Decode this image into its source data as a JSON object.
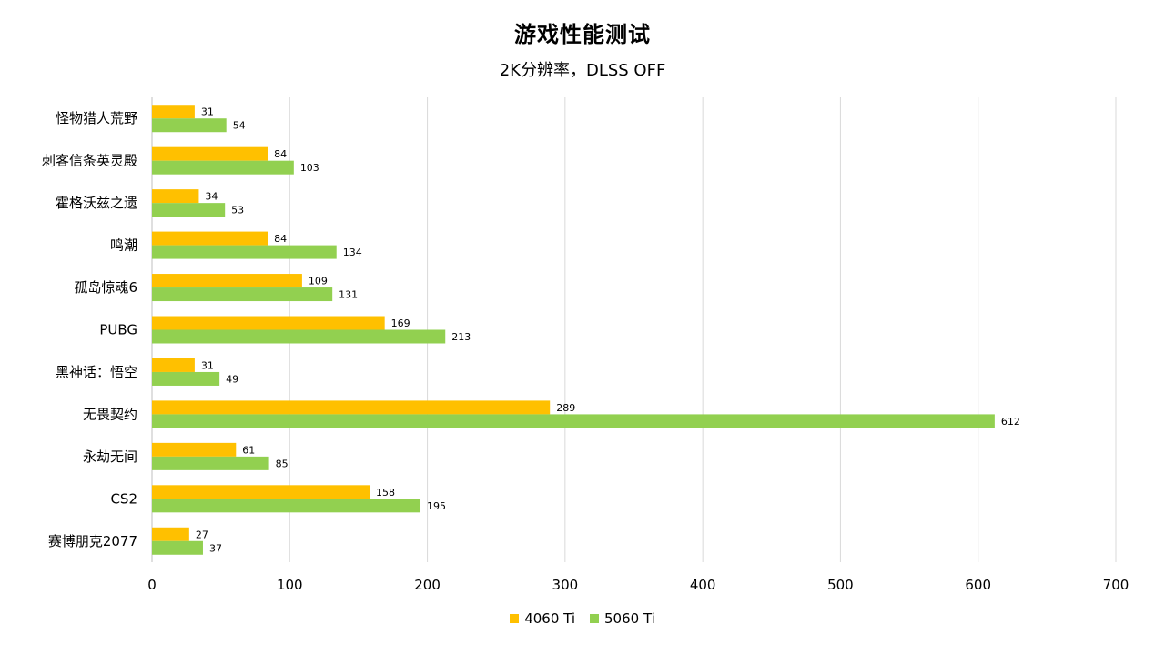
{
  "chart_data": {
    "type": "bar",
    "orientation": "horizontal",
    "title": "游戏性能测试",
    "subtitle": "2K分辨率，DLSS OFF",
    "categories": [
      "怪物猎人荒野",
      "刺客信条英灵殿",
      "霍格沃兹之遗",
      "鸣潮",
      "孤岛惊魂6",
      "PUBG",
      "黑神话：悟空",
      "无畏契约",
      "永劫无间",
      "CS2",
      "赛博朋克2077"
    ],
    "series": [
      {
        "name": "4060 Ti",
        "color": "#FFC000",
        "values": [
          31,
          84,
          34,
          84,
          109,
          169,
          31,
          289,
          61,
          158,
          27
        ]
      },
      {
        "name": "5060 Ti",
        "color": "#92D050",
        "values": [
          54,
          103,
          53,
          134,
          131,
          213,
          49,
          612,
          85,
          195,
          37
        ]
      }
    ],
    "xlim": [
      0,
      700
    ],
    "xticks": [
      "0",
      "100",
      "200",
      "300",
      "400",
      "500",
      "600",
      "700"
    ],
    "grid": true,
    "legend": "bottom",
    "data_labels": true
  }
}
